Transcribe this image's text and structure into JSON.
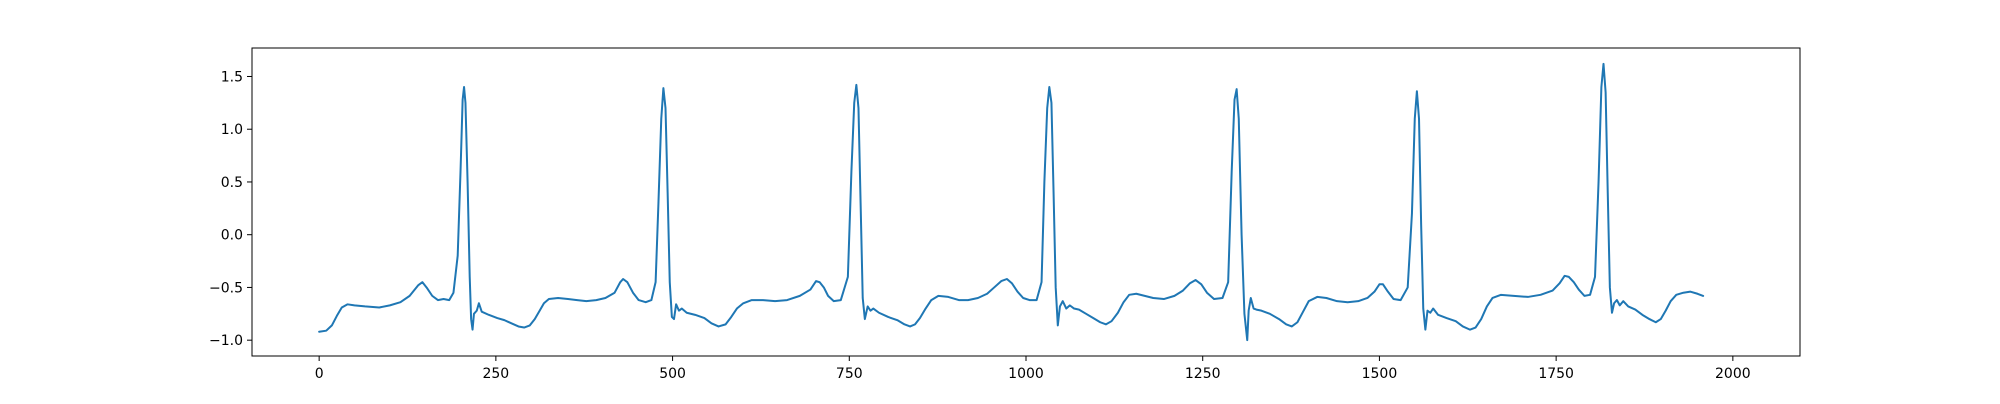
{
  "chart_data": {
    "type": "line",
    "title": "",
    "xlabel": "",
    "ylabel": "",
    "xlim": [
      -95,
      2095
    ],
    "ylim": [
      -1.15,
      1.77
    ],
    "xticks": [
      0,
      250,
      500,
      750,
      1000,
      1250,
      1500,
      1750,
      2000
    ],
    "xtick_labels": [
      "0",
      "250",
      "500",
      "750",
      "1000",
      "1250",
      "1500",
      "1750",
      "2000"
    ],
    "yticks": [
      -1.0,
      -0.5,
      0.0,
      0.5,
      1.0,
      1.5
    ],
    "ytick_labels": [
      "−1.0",
      "−0.5",
      "0.0",
      "0.5",
      "1.0",
      "1.5"
    ],
    "grid": false,
    "colors": {
      "line": "#1f77b4",
      "axes": "#000000",
      "background": "#ffffff"
    },
    "series": [
      {
        "name": "",
        "points": [
          [
            0,
            -0.92
          ],
          [
            10,
            -0.91
          ],
          [
            18,
            -0.86
          ],
          [
            25,
            -0.77
          ],
          [
            32,
            -0.69
          ],
          [
            40,
            -0.66
          ],
          [
            50,
            -0.67
          ],
          [
            65,
            -0.68
          ],
          [
            85,
            -0.69
          ],
          [
            100,
            -0.67
          ],
          [
            115,
            -0.64
          ],
          [
            128,
            -0.58
          ],
          [
            140,
            -0.48
          ],
          [
            146,
            -0.45
          ],
          [
            152,
            -0.5
          ],
          [
            160,
            -0.58
          ],
          [
            168,
            -0.62
          ],
          [
            176,
            -0.61
          ],
          [
            184,
            -0.62
          ],
          [
            190,
            -0.55
          ],
          [
            196,
            -0.2
          ],
          [
            200,
            0.6
          ],
          [
            203,
            1.28
          ],
          [
            205,
            1.4
          ],
          [
            207,
            1.25
          ],
          [
            210,
            0.5
          ],
          [
            213,
            -0.4
          ],
          [
            215,
            -0.8
          ],
          [
            217,
            -0.9
          ],
          [
            219,
            -0.75
          ],
          [
            223,
            -0.72
          ],
          [
            226,
            -0.65
          ],
          [
            230,
            -0.73
          ],
          [
            240,
            -0.76
          ],
          [
            252,
            -0.79
          ],
          [
            262,
            -0.81
          ],
          [
            272,
            -0.84
          ],
          [
            282,
            -0.87
          ],
          [
            290,
            -0.88
          ],
          [
            298,
            -0.86
          ],
          [
            305,
            -0.8
          ],
          [
            312,
            -0.72
          ],
          [
            318,
            -0.65
          ],
          [
            325,
            -0.61
          ],
          [
            338,
            -0.6
          ],
          [
            352,
            -0.61
          ],
          [
            365,
            -0.62
          ],
          [
            378,
            -0.63
          ],
          [
            392,
            -0.62
          ],
          [
            405,
            -0.6
          ],
          [
            418,
            -0.55
          ],
          [
            426,
            -0.45
          ],
          [
            430,
            -0.42
          ],
          [
            436,
            -0.45
          ],
          [
            444,
            -0.55
          ],
          [
            452,
            -0.62
          ],
          [
            462,
            -0.64
          ],
          [
            470,
            -0.62
          ],
          [
            476,
            -0.45
          ],
          [
            480,
            0.3
          ],
          [
            484,
            1.1
          ],
          [
            487,
            1.39
          ],
          [
            490,
            1.2
          ],
          [
            493,
            0.4
          ],
          [
            496,
            -0.45
          ],
          [
            499,
            -0.78
          ],
          [
            502,
            -0.8
          ],
          [
            505,
            -0.66
          ],
          [
            509,
            -0.72
          ],
          [
            513,
            -0.7
          ],
          [
            520,
            -0.74
          ],
          [
            532,
            -0.76
          ],
          [
            545,
            -0.79
          ],
          [
            555,
            -0.84
          ],
          [
            565,
            -0.87
          ],
          [
            575,
            -0.85
          ],
          [
            583,
            -0.78
          ],
          [
            591,
            -0.7
          ],
          [
            600,
            -0.65
          ],
          [
            612,
            -0.62
          ],
          [
            628,
            -0.62
          ],
          [
            645,
            -0.63
          ],
          [
            662,
            -0.62
          ],
          [
            680,
            -0.58
          ],
          [
            695,
            -0.52
          ],
          [
            703,
            -0.44
          ],
          [
            708,
            -0.45
          ],
          [
            714,
            -0.5
          ],
          [
            720,
            -0.58
          ],
          [
            728,
            -0.63
          ],
          [
            738,
            -0.62
          ],
          [
            748,
            -0.4
          ],
          [
            753,
            0.6
          ],
          [
            757,
            1.25
          ],
          [
            760,
            1.42
          ],
          [
            763,
            1.2
          ],
          [
            766,
            0.3
          ],
          [
            769,
            -0.6
          ],
          [
            772,
            -0.8
          ],
          [
            776,
            -0.68
          ],
          [
            780,
            -0.72
          ],
          [
            784,
            -0.7
          ],
          [
            792,
            -0.74
          ],
          [
            805,
            -0.78
          ],
          [
            818,
            -0.81
          ],
          [
            828,
            -0.85
          ],
          [
            836,
            -0.87
          ],
          [
            843,
            -0.85
          ],
          [
            850,
            -0.79
          ],
          [
            858,
            -0.7
          ],
          [
            866,
            -0.62
          ],
          [
            876,
            -0.58
          ],
          [
            890,
            -0.59
          ],
          [
            905,
            -0.62
          ],
          [
            918,
            -0.62
          ],
          [
            932,
            -0.6
          ],
          [
            945,
            -0.56
          ],
          [
            955,
            -0.5
          ],
          [
            965,
            -0.44
          ],
          [
            973,
            -0.42
          ],
          [
            980,
            -0.46
          ],
          [
            988,
            -0.54
          ],
          [
            996,
            -0.6
          ],
          [
            1005,
            -0.62
          ],
          [
            1015,
            -0.62
          ],
          [
            1022,
            -0.45
          ],
          [
            1026,
            0.5
          ],
          [
            1030,
            1.2
          ],
          [
            1033,
            1.4
          ],
          [
            1036,
            1.25
          ],
          [
            1039,
            0.4
          ],
          [
            1042,
            -0.5
          ],
          [
            1045,
            -0.86
          ],
          [
            1048,
            -0.68
          ],
          [
            1052,
            -0.63
          ],
          [
            1057,
            -0.7
          ],
          [
            1062,
            -0.67
          ],
          [
            1068,
            -0.7
          ],
          [
            1075,
            -0.71
          ],
          [
            1085,
            -0.75
          ],
          [
            1095,
            -0.79
          ],
          [
            1105,
            -0.83
          ],
          [
            1113,
            -0.85
          ],
          [
            1121,
            -0.82
          ],
          [
            1130,
            -0.74
          ],
          [
            1138,
            -0.64
          ],
          [
            1146,
            -0.57
          ],
          [
            1156,
            -0.56
          ],
          [
            1168,
            -0.58
          ],
          [
            1180,
            -0.6
          ],
          [
            1195,
            -0.61
          ],
          [
            1210,
            -0.58
          ],
          [
            1222,
            -0.53
          ],
          [
            1232,
            -0.46
          ],
          [
            1240,
            -0.43
          ],
          [
            1248,
            -0.47
          ],
          [
            1256,
            -0.55
          ],
          [
            1266,
            -0.61
          ],
          [
            1278,
            -0.6
          ],
          [
            1286,
            -0.45
          ],
          [
            1291,
            0.6
          ],
          [
            1295,
            1.28
          ],
          [
            1298,
            1.38
          ],
          [
            1301,
            1.1
          ],
          [
            1305,
            0.0
          ],
          [
            1309,
            -0.75
          ],
          [
            1313,
            -1.0
          ],
          [
            1315,
            -0.72
          ],
          [
            1318,
            -0.6
          ],
          [
            1322,
            -0.7
          ],
          [
            1326,
            -0.71
          ],
          [
            1333,
            -0.72
          ],
          [
            1345,
            -0.75
          ],
          [
            1358,
            -0.8
          ],
          [
            1368,
            -0.85
          ],
          [
            1376,
            -0.87
          ],
          [
            1384,
            -0.83
          ],
          [
            1392,
            -0.73
          ],
          [
            1400,
            -0.63
          ],
          [
            1412,
            -0.59
          ],
          [
            1425,
            -0.6
          ],
          [
            1440,
            -0.63
          ],
          [
            1455,
            -0.64
          ],
          [
            1470,
            -0.63
          ],
          [
            1483,
            -0.6
          ],
          [
            1493,
            -0.54
          ],
          [
            1500,
            -0.47
          ],
          [
            1505,
            -0.47
          ],
          [
            1512,
            -0.54
          ],
          [
            1520,
            -0.61
          ],
          [
            1530,
            -0.62
          ],
          [
            1540,
            -0.5
          ],
          [
            1546,
            0.2
          ],
          [
            1550,
            1.1
          ],
          [
            1553,
            1.36
          ],
          [
            1556,
            1.1
          ],
          [
            1559,
            0.1
          ],
          [
            1562,
            -0.7
          ],
          [
            1565,
            -0.9
          ],
          [
            1568,
            -0.72
          ],
          [
            1572,
            -0.74
          ],
          [
            1576,
            -0.7
          ],
          [
            1583,
            -0.76
          ],
          [
            1595,
            -0.79
          ],
          [
            1608,
            -0.82
          ],
          [
            1618,
            -0.87
          ],
          [
            1628,
            -0.9
          ],
          [
            1636,
            -0.88
          ],
          [
            1644,
            -0.8
          ],
          [
            1652,
            -0.68
          ],
          [
            1660,
            -0.6
          ],
          [
            1672,
            -0.57
          ],
          [
            1690,
            -0.58
          ],
          [
            1710,
            -0.59
          ],
          [
            1728,
            -0.57
          ],
          [
            1745,
            -0.53
          ],
          [
            1755,
            -0.46
          ],
          [
            1762,
            -0.39
          ],
          [
            1768,
            -0.4
          ],
          [
            1775,
            -0.45
          ],
          [
            1782,
            -0.52
          ],
          [
            1790,
            -0.58
          ],
          [
            1798,
            -0.57
          ],
          [
            1805,
            -0.4
          ],
          [
            1810,
            0.5
          ],
          [
            1814,
            1.4
          ],
          [
            1817,
            1.62
          ],
          [
            1820,
            1.35
          ],
          [
            1823,
            0.4
          ],
          [
            1826,
            -0.5
          ],
          [
            1829,
            -0.74
          ],
          [
            1832,
            -0.65
          ],
          [
            1836,
            -0.62
          ],
          [
            1840,
            -0.67
          ],
          [
            1845,
            -0.63
          ],
          [
            1852,
            -0.68
          ],
          [
            1862,
            -0.71
          ],
          [
            1872,
            -0.76
          ],
          [
            1882,
            -0.8
          ],
          [
            1891,
            -0.83
          ],
          [
            1898,
            -0.8
          ],
          [
            1905,
            -0.72
          ],
          [
            1912,
            -0.63
          ],
          [
            1920,
            -0.57
          ],
          [
            1930,
            -0.55
          ],
          [
            1940,
            -0.54
          ],
          [
            1950,
            -0.56
          ],
          [
            1958,
            -0.58
          ]
        ]
      }
    ]
  }
}
